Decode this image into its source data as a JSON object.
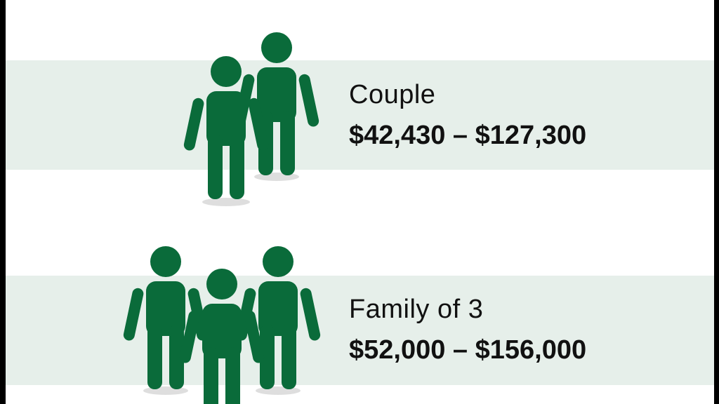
{
  "rows": [
    {
      "label": "Couple",
      "range": "$42,430 – $127,300",
      "icon": "couple-icon"
    },
    {
      "label": "Family of 3",
      "range": "$52,000 – $156,000",
      "icon": "family-of-3-icon"
    }
  ],
  "colors": {
    "icon_green": "#0a6b3a",
    "band": "#e6efea",
    "text": "#111111",
    "frame": "#000000"
  }
}
